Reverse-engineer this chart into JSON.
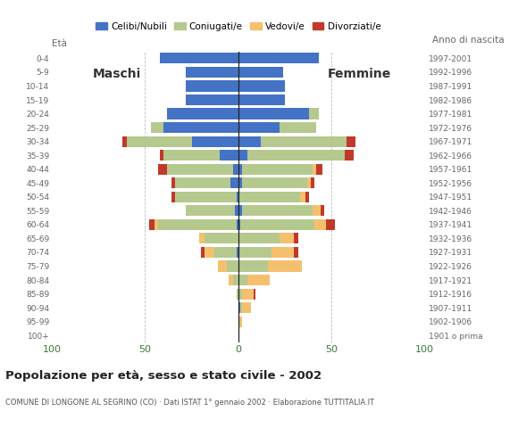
{
  "age_groups": [
    "100+",
    "95-99",
    "90-94",
    "85-89",
    "80-84",
    "75-79",
    "70-74",
    "65-69",
    "60-64",
    "55-59",
    "50-54",
    "45-49",
    "40-44",
    "35-39",
    "30-34",
    "25-29",
    "20-24",
    "15-19",
    "10-14",
    "5-9",
    "0-4"
  ],
  "birth_years": [
    "1901 o prima",
    "1902-1906",
    "1907-1911",
    "1912-1916",
    "1917-1921",
    "1922-1926",
    "1927-1931",
    "1932-1936",
    "1937-1941",
    "1942-1946",
    "1947-1951",
    "1952-1956",
    "1957-1961",
    "1962-1966",
    "1967-1971",
    "1972-1976",
    "1977-1981",
    "1982-1986",
    "1987-1991",
    "1992-1996",
    "1997-2001"
  ],
  "colors": {
    "celibe": "#4472c4",
    "coniugato": "#b5c98e",
    "vedovo": "#f5c06e",
    "divorziato": "#c0392b"
  },
  "males": {
    "celibe": [
      0,
      0,
      0,
      0,
      0,
      0,
      1,
      0,
      1,
      2,
      1,
      4,
      3,
      10,
      25,
      40,
      38,
      28,
      28,
      28,
      42
    ],
    "coniugato": [
      0,
      0,
      0,
      1,
      3,
      6,
      12,
      18,
      42,
      26,
      33,
      30,
      35,
      30,
      35,
      7,
      0,
      0,
      0,
      0,
      0
    ],
    "vedovo": [
      0,
      0,
      0,
      0,
      2,
      5,
      5,
      3,
      2,
      0,
      0,
      0,
      0,
      0,
      0,
      0,
      0,
      0,
      0,
      0,
      0
    ],
    "divorziato": [
      0,
      0,
      0,
      0,
      0,
      0,
      2,
      0,
      3,
      0,
      2,
      2,
      5,
      2,
      2,
      0,
      0,
      0,
      0,
      0,
      0
    ]
  },
  "females": {
    "celibe": [
      0,
      0,
      1,
      0,
      0,
      0,
      0,
      0,
      1,
      2,
      0,
      2,
      2,
      5,
      12,
      22,
      38,
      25,
      25,
      24,
      43
    ],
    "coniugato": [
      0,
      0,
      1,
      2,
      5,
      16,
      18,
      22,
      40,
      38,
      33,
      35,
      38,
      52,
      46,
      20,
      5,
      0,
      0,
      0,
      0
    ],
    "vedovo": [
      0,
      2,
      5,
      6,
      12,
      18,
      12,
      8,
      6,
      4,
      3,
      2,
      2,
      0,
      0,
      0,
      0,
      0,
      0,
      0,
      0
    ],
    "divorziato": [
      0,
      0,
      0,
      1,
      0,
      0,
      2,
      2,
      5,
      2,
      2,
      2,
      3,
      5,
      5,
      0,
      0,
      0,
      0,
      0,
      0
    ]
  },
  "title": "Popolazione per età, sesso e stato civile - 2002",
  "subtitle": "COMUNE DI LONGONE AL SEGRINO (CO) · Dati ISTAT 1° gennaio 2002 · Elaborazione TUTTITALIA.IT",
  "maschi_label": "Maschi",
  "femmine_label": "Femmine",
  "eta_label": "Età",
  "anno_label": "Anno di nascita",
  "xlim": 100,
  "legend_labels": [
    "Celibi/Nubili",
    "Coniugati/e",
    "Vedovi/e",
    "Divorziati/e"
  ]
}
